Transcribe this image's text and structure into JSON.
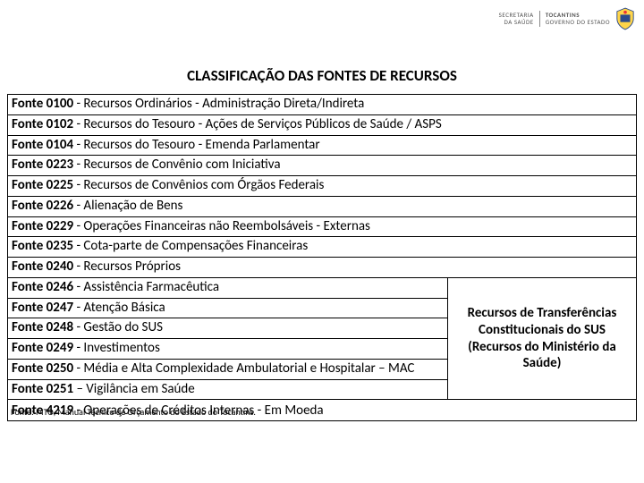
{
  "header": {
    "left_brand_line1": "SECRETARIA",
    "left_brand_line2": "DA SAÚDE",
    "right_brand_line1": "TOCANTINS",
    "right_brand_line2": "GOVERNO DO ESTADO"
  },
  "title": "CLASSIFICAÇÃO DAS FONTES DE RECURSOS",
  "rows_full_top": [
    {
      "code": "Fonte 0100",
      "desc": " - Recursos Ordinários - Administração Direta/Indireta"
    },
    {
      "code": "Fonte 0102",
      "desc": " - Recursos do Tesouro - Ações de Serviços Públicos de Saúde / ASPS"
    },
    {
      "code": "Fonte 0104",
      "desc": " - Recursos do Tesouro - Emenda Parlamentar"
    },
    {
      "code": "Fonte 0223",
      "desc": " - Recursos de Convênio com Iniciativa"
    },
    {
      "code": "Fonte 0225",
      "desc": " - Recursos de Convênios com Órgãos Federais"
    },
    {
      "code": "Fonte 0226",
      "desc": " - Alienação de Bens"
    },
    {
      "code": "Fonte 0229",
      "desc": " - Operações Financeiras não Reembolsáveis - Externas"
    },
    {
      "code": "Fonte 0235",
      "desc": " - Cota-parte de Compensações Financeiras"
    },
    {
      "code": "Fonte 0240",
      "desc": " - Recursos Próprios"
    }
  ],
  "rows_split_left": [
    {
      "code": "Fonte 0246",
      "desc": " - Assistência Farmacêutica"
    },
    {
      "code": "Fonte 0247",
      "desc": " - Atenção Básica"
    },
    {
      "code": "Fonte 0248",
      "desc": " - Gestão do SUS"
    },
    {
      "code": "Fonte 0249",
      "desc": " - Investimentos"
    },
    {
      "code": "Fonte 0250",
      "desc": " - Média e Alta Complexidade Ambulatorial e Hospitalar – MAC"
    },
    {
      "code": "Fonte 0251",
      "desc": " – Vigilância em Saúde"
    }
  ],
  "split_right_text": "Recursos de Transferências Constitucionais do SUS (Recursos do Ministério da Saúde)",
  "last_row": {
    "code": "Fonte 4219",
    "desc": " - Operações de Créditos Internas - Em Moeda"
  },
  "footnote": "Fonte: MTO, Manual Técnico de Orçamento do Estado do Tocantins.",
  "colors": {
    "text": "#000000",
    "background": "#ffffff",
    "border": "#000000"
  }
}
